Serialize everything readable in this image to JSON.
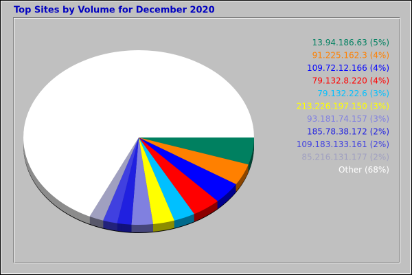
{
  "chart_data": {
    "type": "pie",
    "title": "Top Sites by Volume for December 2020",
    "categories": [
      "13.94.186.63",
      "91.225.162.3",
      "109.72.12.166",
      "79.132.8.220",
      "79.132.22.6",
      "213.226.197.150",
      "93.181.74.157",
      "185.78.38.172",
      "109.183.133.161",
      "85.216.131.177",
      "Other"
    ],
    "values": [
      5,
      4,
      4,
      4,
      3,
      3,
      3,
      2,
      2,
      2,
      68
    ],
    "value_labels": [
      "(5%)",
      "(4%)",
      "(4%)",
      "(4%)",
      "(3%)",
      "(3%)",
      "(3%)",
      "(2%)",
      "(2%)",
      "(2%)",
      "(68%)"
    ],
    "colors": [
      "#008060",
      "#ff8000",
      "#0000ff",
      "#ff0000",
      "#00c0ff",
      "#ffff00",
      "#8080e0",
      "#2020e0",
      "#4040e0",
      "#a0a0c0",
      "#ffffff"
    ]
  }
}
